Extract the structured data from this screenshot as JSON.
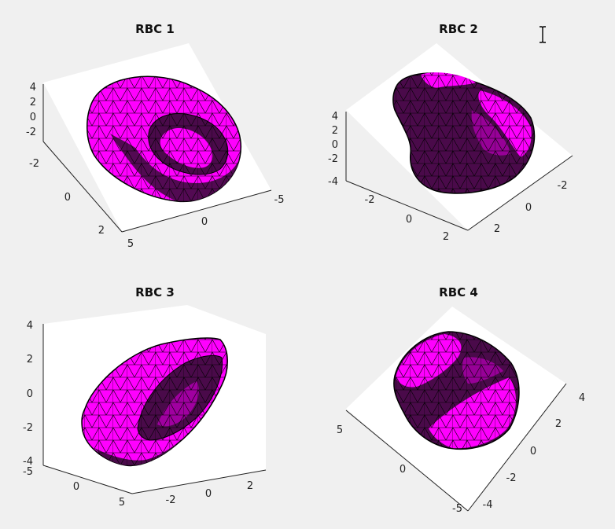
{
  "figure": {
    "background": "#f0f0f0"
  },
  "colors": {
    "light": "#ff00ff",
    "dark": "#4a0a4a",
    "mid": "#a000a0",
    "edge": "#000000"
  },
  "icons": {
    "cursor": "text-cursor-icon"
  },
  "chart_data": [
    {
      "type": "surface3d",
      "title": "RBC 1",
      "z_ticks": [
        "4",
        "2",
        "0",
        "-2"
      ],
      "y_ticks": [
        "-2",
        "0",
        "2"
      ],
      "x_ticks": [
        "-5",
        "0",
        "5"
      ]
    },
    {
      "type": "surface3d",
      "title": "RBC 2",
      "z_ticks": [
        "4",
        "2",
        "0",
        "-2",
        "-4"
      ],
      "y_ticks": [
        "-2",
        "0",
        "2"
      ],
      "x_ticks": [
        "-2",
        "0",
        "2"
      ]
    },
    {
      "type": "surface3d",
      "title": "RBC 3",
      "z_ticks": [
        "4",
        "2",
        "0",
        "-2",
        "-4"
      ],
      "y_ticks": [
        "-5",
        "0",
        "5"
      ],
      "x_ticks": [
        "-2",
        "0",
        "2"
      ]
    },
    {
      "type": "surface3d",
      "title": "RBC 4",
      "z_ticks": [
        "5",
        "0",
        "-5"
      ],
      "y_ticks": [
        "4",
        "2",
        "0",
        "-2",
        "-4"
      ],
      "x_ticks": []
    }
  ]
}
